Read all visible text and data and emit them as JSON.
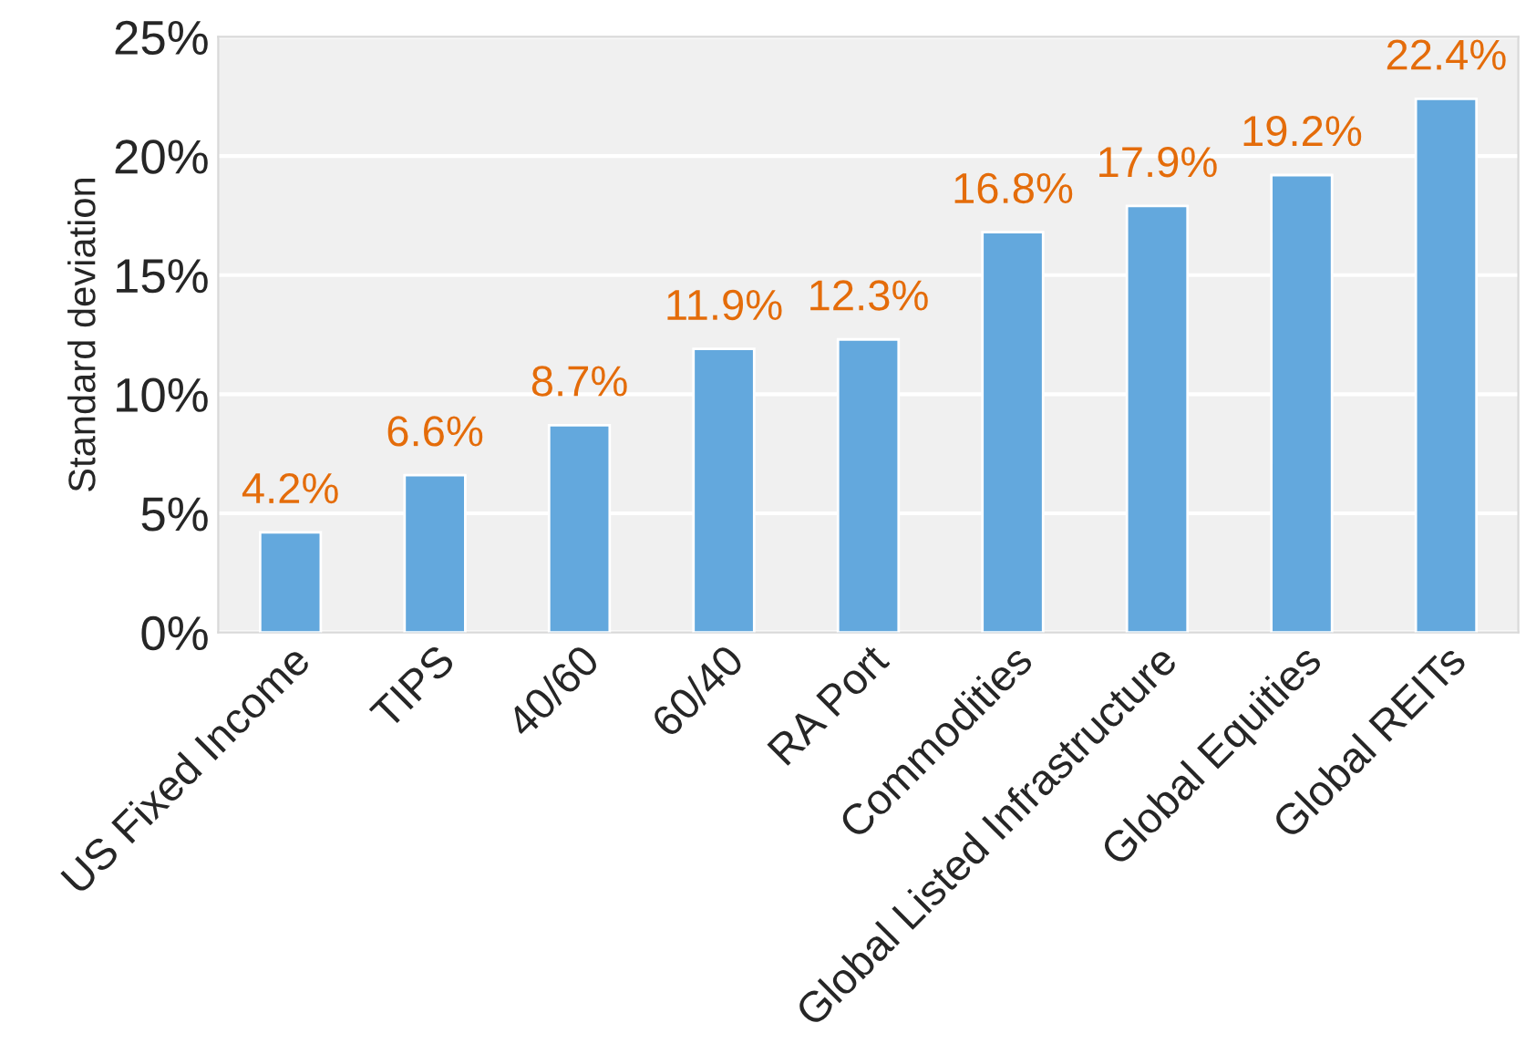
{
  "chart_data": {
    "type": "bar",
    "ylabel": "Standard deviation",
    "categories": [
      "US Fixed Income",
      "TIPS",
      "40/60",
      "60/40",
      "RA Port",
      "Commodities",
      "Global Listed Infrastructure",
      "Global Equities",
      "Global REITs"
    ],
    "values": [
      4.2,
      6.6,
      8.7,
      11.9,
      12.3,
      16.8,
      17.9,
      19.2,
      22.4
    ],
    "value_labels": [
      "4.2%",
      "6.6%",
      "8.7%",
      "11.9%",
      "12.3%",
      "16.8%",
      "17.9%",
      "19.2%",
      "22.4%"
    ],
    "color": "#63a8dd",
    "ylim": [
      0,
      25
    ],
    "yticks": [
      {
        "value": 0,
        "label": "0%"
      },
      {
        "value": 5,
        "label": "5%"
      },
      {
        "value": 10,
        "label": "10%"
      },
      {
        "value": 15,
        "label": "15%"
      },
      {
        "value": 20,
        "label": "20%"
      },
      {
        "value": 25,
        "label": "25%"
      }
    ],
    "grid": "y"
  }
}
